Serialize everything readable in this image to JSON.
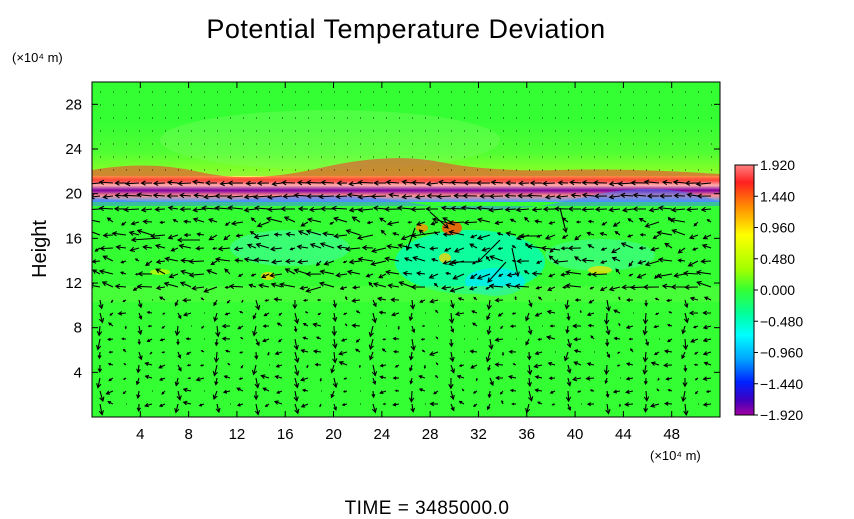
{
  "chart_data": {
    "type": "heatmap",
    "title": "Potential Temperature Deviation",
    "ylabel": "Height",
    "y_unit": "(×10⁴ m)",
    "x_unit": "(×10⁴ m)",
    "x_ticks": [
      4,
      8,
      12,
      16,
      20,
      24,
      28,
      32,
      36,
      40,
      44,
      48
    ],
    "y_ticks": [
      4,
      8,
      12,
      16,
      20,
      24,
      28
    ],
    "xlim": [
      0,
      52
    ],
    "ylim": [
      0,
      30
    ],
    "colorbar": {
      "labels": [
        "1.920",
        "1.440",
        "0.960",
        "0.480",
        "0.000",
        "−0.480",
        "−0.960",
        "−1.440",
        "−1.920"
      ],
      "range": [
        -1.92,
        1.92
      ]
    },
    "overlay": "wind vector arrows",
    "footer": "TIME  =  3485000.0"
  },
  "colors": {
    "background_field": "#33ff33",
    "arrows": "#000000"
  }
}
